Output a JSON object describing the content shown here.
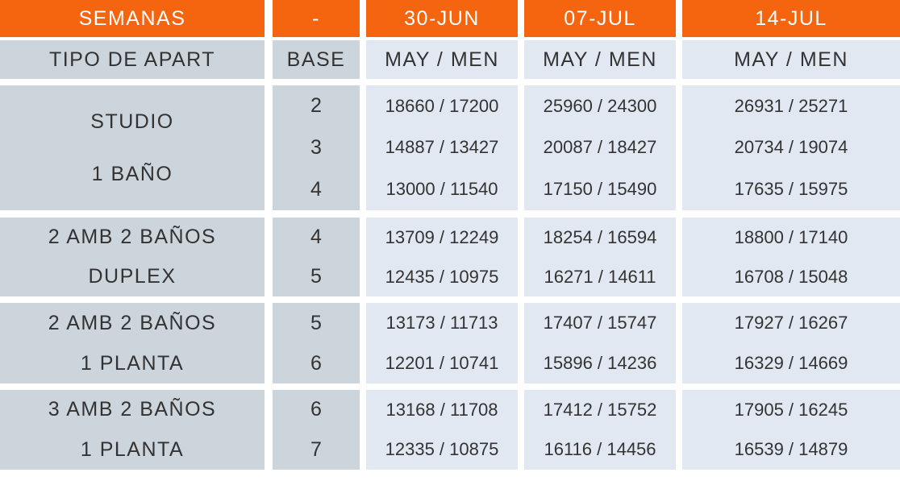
{
  "header": [
    "SEMANAS",
    "-",
    "30-JUN",
    "07-JUL",
    "14-JUL"
  ],
  "subheader": [
    "TIPO DE APART",
    "BASE",
    "MAY / MEN",
    "MAY / MEN",
    "MAY / MEN"
  ],
  "groups": [
    {
      "label": [
        "STUDIO",
        "1 BAÑO"
      ],
      "rows": [
        {
          "base": "2",
          "v": [
            "18660 / 17200",
            "25960 / 24300",
            "26931 / 25271"
          ]
        },
        {
          "base": "3",
          "v": [
            "14887 / 13427",
            "20087 / 18427",
            "20734 / 19074"
          ]
        },
        {
          "base": "4",
          "v": [
            "13000 / 11540",
            "17150 / 15490",
            "17635 / 15975"
          ]
        }
      ]
    },
    {
      "label": [
        "2 AMB 2 BAÑOS",
        "DUPLEX"
      ],
      "rows": [
        {
          "base": "4",
          "v": [
            "13709 / 12249",
            "18254 / 16594",
            "18800 / 17140"
          ]
        },
        {
          "base": "5",
          "v": [
            "12435 / 10975",
            "16271 / 14611",
            "16708 / 15048"
          ]
        }
      ]
    },
    {
      "label": [
        "2 AMB 2 BAÑOS",
        "1 PLANTA"
      ],
      "rows": [
        {
          "base": "5",
          "v": [
            "13173 / 11713",
            "17407 / 15747",
            "17927 / 16267"
          ]
        },
        {
          "base": "6",
          "v": [
            "12201 / 10741",
            "15896 / 14236",
            "16329 / 14669"
          ]
        }
      ]
    },
    {
      "label": [
        "3 AMB 2 BAÑOS",
        "1 PLANTA"
      ],
      "rows": [
        {
          "base": "6",
          "v": [
            "13168 / 11708",
            "17412 / 15752",
            "17905 / 16245"
          ]
        },
        {
          "base": "7",
          "v": [
            "12335 / 10875",
            "16116 / 14456",
            "16539 / 14879"
          ]
        }
      ]
    }
  ],
  "colors": {
    "header": "#f5650f",
    "label_bg": "#ccd4dc",
    "value_bg": "#e1e8f1"
  }
}
